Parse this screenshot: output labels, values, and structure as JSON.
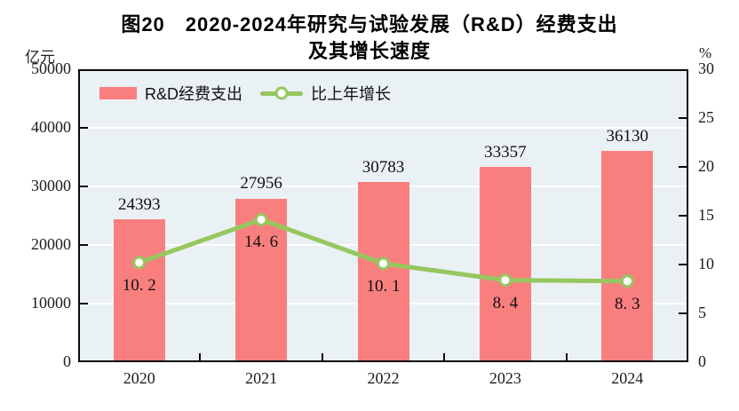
{
  "title": {
    "line1": "图20　2020-2024年研究与试验发展（R&D）经费支出",
    "line2": "及其增长速度"
  },
  "axes": {
    "left_unit": "亿元",
    "right_unit": "%"
  },
  "legend": [
    {
      "label": "R&D经费支出",
      "type": "bar"
    },
    {
      "label": "比上年增长",
      "type": "line"
    }
  ],
  "colors": {
    "bar": "#F97F7F",
    "line": "#96C75F",
    "marker_fill": "#FFFFFF",
    "plot_bg": "#EAF1F5",
    "grid": "#FFFFFF",
    "axis": "#0A0A0A",
    "text": "#1C1C1C"
  },
  "chart_data": {
    "type": "bar",
    "subtype": "bar+line combo, dual axis",
    "title": "图20　2020-2024年研究与试验发展（R&D）经费支出及其增长速度",
    "categories": [
      "2020",
      "2021",
      "2022",
      "2023",
      "2024"
    ],
    "series": [
      {
        "name": "R&D经费支出",
        "type": "bar",
        "axis": "left",
        "unit": "亿元",
        "values": [
          24393,
          27956,
          30783,
          33357,
          36130
        ],
        "labels": [
          "24393",
          "27956",
          "30783",
          "33357",
          "36130"
        ]
      },
      {
        "name": "比上年增长",
        "type": "line",
        "axis": "right",
        "unit": "%",
        "values": [
          10.2,
          14.6,
          10.1,
          8.4,
          8.3
        ],
        "labels": [
          "10. 2",
          "14. 6",
          "10. 1",
          "8. 4",
          "8. 3"
        ]
      }
    ],
    "left_axis": {
      "label": "亿元",
      "min": 0,
      "max": 50000,
      "ticks": [
        0,
        10000,
        20000,
        30000,
        40000,
        50000
      ]
    },
    "right_axis": {
      "label": "%",
      "min": 0,
      "max": 30,
      "ticks": [
        0,
        5,
        10,
        15,
        20,
        25,
        30
      ]
    },
    "grid": "horizontal white gridlines at left-axis major ticks",
    "legend_position": "inside plot, top-left"
  }
}
